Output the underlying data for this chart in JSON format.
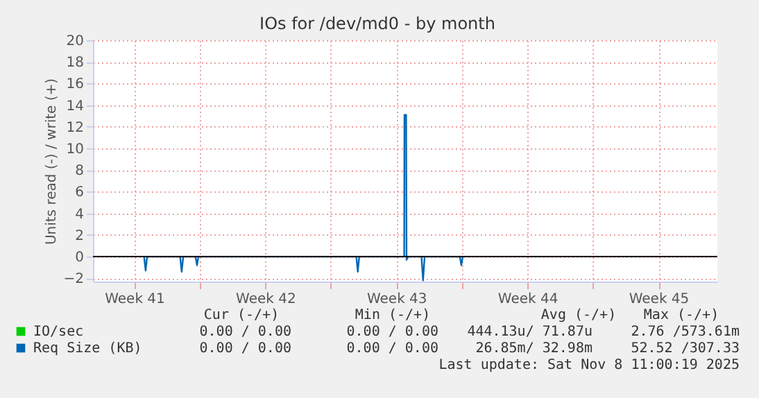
{
  "chart_data": {
    "type": "line",
    "title": "IOs for /dev/md0 - by month",
    "ylabel": "Units read (-) / write (+)",
    "xlim": [
      "2025-10-07T07:05",
      "2025-11-09T15:36"
    ],
    "xticks": [
      {
        "value": "2025-10-09T12:00",
        "label": "Week 41"
      },
      {
        "value": "2025-10-13",
        "label": null
      },
      {
        "value": "2025-10-16T12:00",
        "label": "Week 42"
      },
      {
        "value": "2025-10-20",
        "label": null
      },
      {
        "value": "2025-10-23T12:00",
        "label": "Week 43"
      },
      {
        "value": "2025-10-27",
        "label": null
      },
      {
        "value": "2025-10-30T12:00",
        "label": "Week 44"
      },
      {
        "value": "2025-11-03",
        "label": null
      },
      {
        "value": "2025-11-06T12:00",
        "label": "Week 45"
      }
    ],
    "ylim": [
      -2.3,
      20
    ],
    "yticks": [
      -2,
      0,
      2,
      4,
      6,
      8,
      10,
      12,
      14,
      16,
      18,
      20
    ],
    "grid": true,
    "legend": "bottom left",
    "marker": "none",
    "line_style": "solid",
    "ref_lines": [
      {
        "axis": "y",
        "value": 0,
        "color": "#000000"
      }
    ],
    "series": [
      {
        "name": "IO/sec",
        "color": "#00cc00"
      },
      {
        "name": "Req Size (KB)",
        "color": "#0066b3",
        "x": [
          "2025-10-10T00:36",
          "2025-10-10T02:37",
          "2025-10-10T04:28",
          "2025-10-11T22:48",
          "2025-10-12T00:49",
          "2025-10-12T02:50",
          "2025-10-12T18:37",
          "2025-10-12T20:28",
          "2025-10-12T22:19",
          "2025-10-21T08:46",
          "2025-10-21T10:36",
          "2025-10-21T12:27",
          "2025-10-23T22:05",
          "2025-10-23T22:25",
          "2025-10-24T00:36",
          "2025-10-24T01:06",
          "2025-10-24T03:07",
          "2025-10-24T20:15",
          "2025-10-24T22:16",
          "2025-10-25T00:17",
          "2025-10-26T21:29",
          "2025-10-26T23:20",
          "2025-10-27T01:10"
        ],
        "values": [
          0,
          -1.3,
          0,
          0,
          -1.4,
          0,
          0,
          -0.8,
          0,
          0,
          -1.4,
          0,
          0,
          13.1,
          13.1,
          -0.3,
          0,
          0,
          -2.2,
          0,
          0,
          -0.8,
          0
        ]
      }
    ],
    "annotations": [
      "Cur (-/+)",
      "Min (-/+)",
      "Avg (-/+)",
      "Max (-/+)",
      "0.00 /  0.00",
      "0.00 /  0.00",
      "444.13u/ 71.87u",
      "2.76 /573.61m",
      "0.00 /  0.00",
      "0.00 /  0.00",
      "26.85m/ 32.98m",
      "52.52 /307.33",
      "Last update: Sat Nov  8 11:00:19 2025"
    ]
  }
}
